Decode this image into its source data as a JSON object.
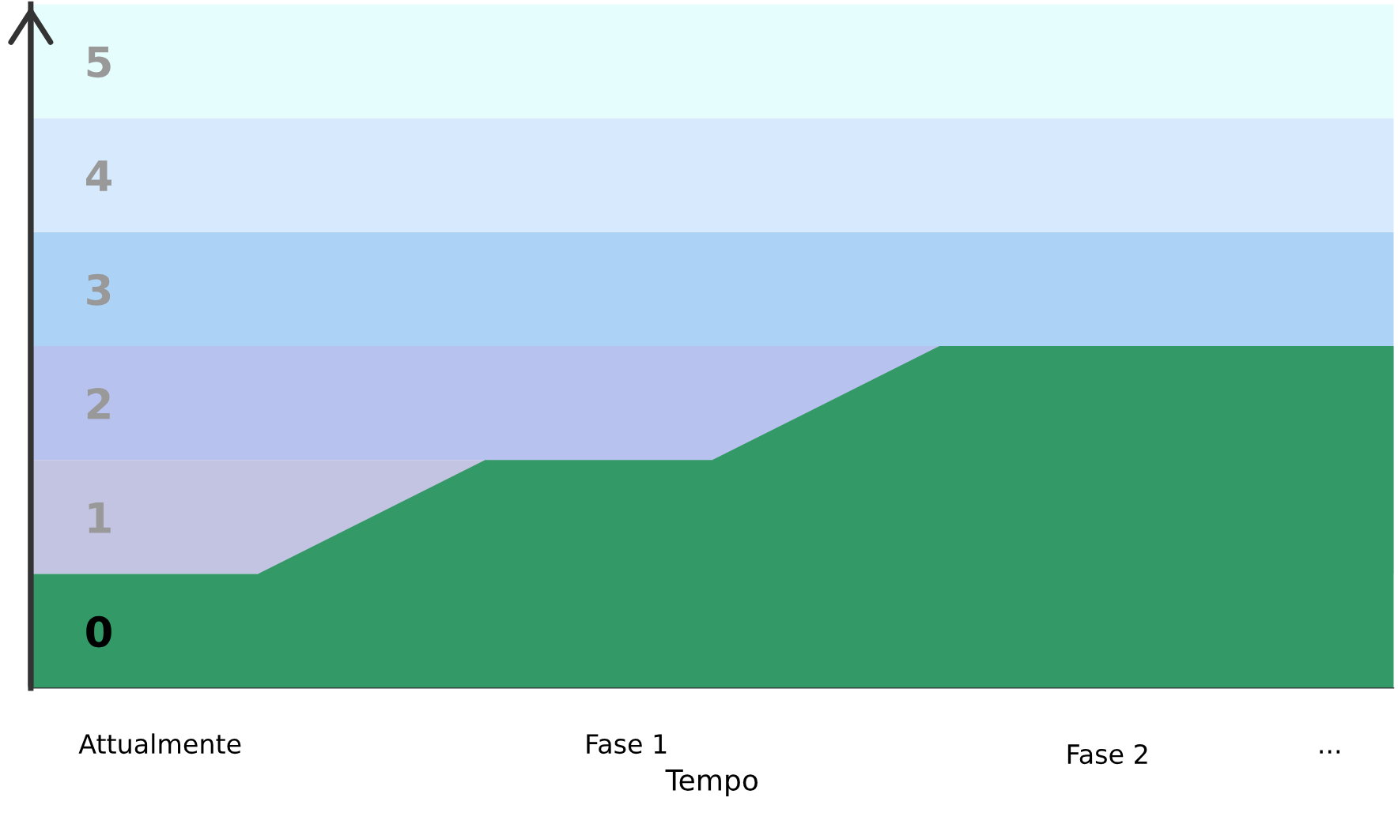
{
  "chart_data": {
    "type": "area",
    "xlabel": "Tempo",
    "categories": [
      null,
      null,
      null,
      null,
      null,
      null,
      null
    ],
    "series": [
      {
        "color": "#339966",
        "values": [
          1,
          1,
          2,
          2,
          3,
          3,
          3
        ]
      }
    ],
    "ylim": [
      0,
      6
    ],
    "yticks": [
      {
        "value": 0.5,
        "label": "0"
      },
      {
        "value": 1.5,
        "label": "1"
      },
      {
        "value": 2.5,
        "label": "2"
      },
      {
        "value": 3.5,
        "label": "3"
      },
      {
        "value": 4.5,
        "label": "4"
      },
      {
        "value": 5.5,
        "label": "5"
      }
    ],
    "annotations": [
      "Attualmente",
      "Fase 1",
      "Fase 2",
      "..."
    ],
    "grid": false,
    "bands": [
      {
        "axis": "y",
        "from": 1,
        "to": 2,
        "color": "#c3c3e2"
      },
      {
        "axis": "y",
        "from": 2,
        "to": 3,
        "color": "#b8c2ee"
      },
      {
        "axis": "y",
        "from": 3,
        "to": 4,
        "color": "#acd3f5"
      },
      {
        "axis": "y",
        "from": 4,
        "to": 5,
        "color": "#d6e9fd"
      },
      {
        "axis": "y",
        "from": 5,
        "to": 6,
        "color": "#e6fdfd"
      }
    ]
  }
}
